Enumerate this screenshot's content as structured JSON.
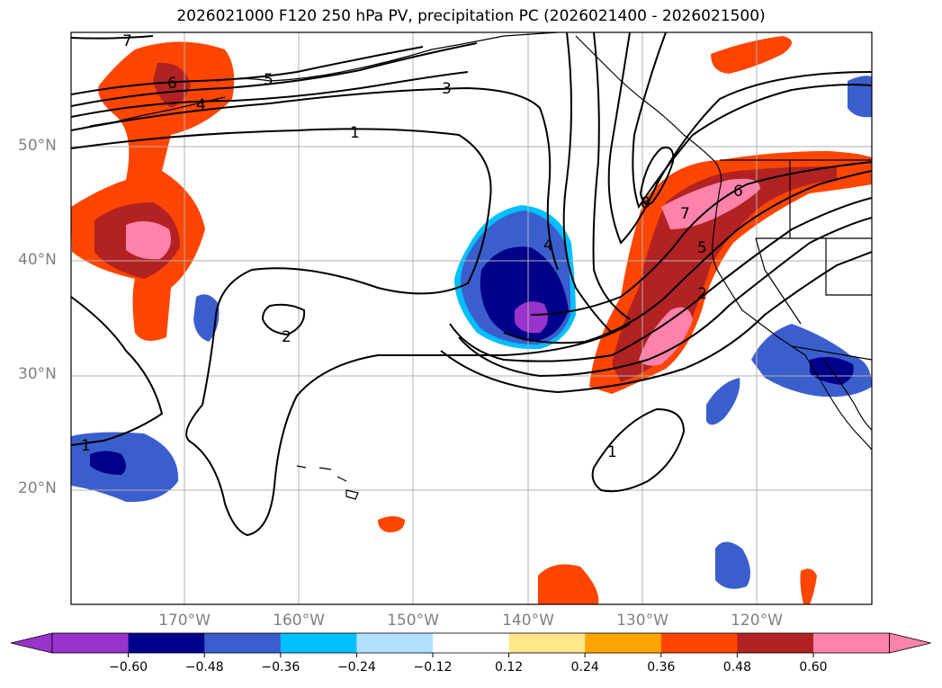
{
  "title": "2026021000 F120 250 hPa PV, precipitation PC (2026021400 - 2026021500)",
  "lat_labels": [
    "50°N",
    "40°N",
    "30°N",
    "20°N"
  ],
  "lon_labels": [
    "170°W",
    "160°W",
    "150°W",
    "140°W",
    "130°W",
    "120°W"
  ],
  "colorbar": {
    "ticks": [
      "−0.60",
      "−0.48",
      "−0.36",
      "−0.24",
      "−0.12",
      "0.12",
      "0.24",
      "0.36",
      "0.48",
      "0.60"
    ],
    "colors": [
      "#9933cc",
      "#00008b",
      "#3a5fcd",
      "#00bfff",
      "#b0e2ff",
      "#ffffff",
      "#ffe78a",
      "#ffa500",
      "#ff4500",
      "#b22222",
      "#ff82ab",
      "#ff82ab"
    ]
  },
  "contour_labels": [
    "7",
    "6",
    "5",
    "4",
    "3",
    "1",
    "2",
    "1",
    "4",
    "8",
    "7",
    "6",
    "5",
    "2",
    "1"
  ]
}
